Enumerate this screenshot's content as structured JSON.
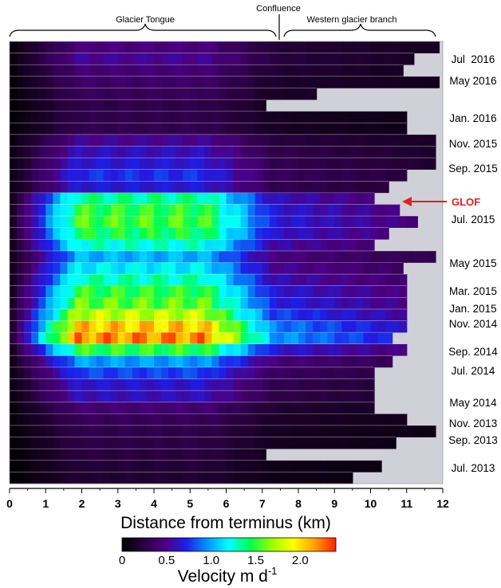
{
  "chart_data": {
    "type": "heatmap",
    "xlabel": "Distance from terminus (km)",
    "x_ticks": [
      "0",
      "1",
      "2",
      "3",
      "4",
      "5",
      "6",
      "7",
      "8",
      "9",
      "10",
      "11",
      "12"
    ],
    "xlim": [
      0,
      12
    ],
    "top_annotations": [
      "Glacier Tongue",
      "Confluence",
      "Western glacier branch"
    ],
    "row_labels": [
      "Jul  2016",
      "May 2016",
      "Jan. 2016",
      "Nov. 2015",
      "Sep. 2015",
      "Jul. 2015",
      "May 2015",
      "Mar. 2015",
      "Jan. 2015",
      "Nov. 2014",
      "Sep. 2014",
      "Jul. 2014",
      "May 2014",
      "Nov. 2013",
      "Sep. 2013",
      "Jul. 2013"
    ],
    "glof_label": "GLOF",
    "colorbar": {
      "title": "Velocity m d",
      "title_sup": "-1",
      "ticks": [
        "0",
        "0.5",
        "1.0",
        "1.5",
        "2.0"
      ],
      "range": [
        0,
        2.4
      ],
      "stops": [
        "#000000",
        "#2a0040",
        "#4b0082",
        "#1e1ee6",
        "#0096ff",
        "#00ffff",
        "#00ff50",
        "#9aff00",
        "#ffff00",
        "#ffa000",
        "#ff2000"
      ]
    },
    "no_data_color": "#d0d0d8",
    "rows": [
      {
        "peak": 0.48,
        "extent": 11.9
      },
      {
        "peak": 0.55,
        "extent": 11.2
      },
      {
        "peak": 0.45,
        "extent": 10.9
      },
      {
        "peak": 0.4,
        "extent": 11.9
      },
      {
        "peak": 0.35,
        "extent": 8.5
      },
      {
        "peak": 0.3,
        "extent": 7.1
      },
      {
        "peak": 0.3,
        "extent": 11.0
      },
      {
        "peak": 0.32,
        "extent": 11.0
      },
      {
        "peak": 0.55,
        "extent": 11.8
      },
      {
        "peak": 0.65,
        "extent": 11.8
      },
      {
        "peak": 0.72,
        "extent": 11.8
      },
      {
        "peak": 0.8,
        "extent": 11.0
      },
      {
        "peak": 0.72,
        "extent": 10.5
      },
      {
        "peak": 1.45,
        "extent": 10.1
      },
      {
        "peak": 1.6,
        "extent": 10.8
      },
      {
        "peak": 1.65,
        "extent": 11.3
      },
      {
        "peak": 1.55,
        "extent": 10.5
      },
      {
        "peak": 1.35,
        "extent": 10.1
      },
      {
        "peak": 1.1,
        "extent": 11.8
      },
      {
        "peak": 1.25,
        "extent": 10.9
      },
      {
        "peak": 1.4,
        "extent": 11.0
      },
      {
        "peak": 1.6,
        "extent": 11.0
      },
      {
        "peak": 1.7,
        "extent": 11.0
      },
      {
        "peak": 1.9,
        "extent": 11.0
      },
      {
        "peak": 2.2,
        "extent": 11.0
      },
      {
        "peak": 2.35,
        "extent": 10.6
      },
      {
        "peak": 1.6,
        "extent": 11.0
      },
      {
        "peak": 1.05,
        "extent": 10.6
      },
      {
        "peak": 0.85,
        "extent": 10.1
      },
      {
        "peak": 0.7,
        "extent": 10.1
      },
      {
        "peak": 0.65,
        "extent": 10.1
      },
      {
        "peak": 0.45,
        "extent": 10.1
      },
      {
        "peak": 0.35,
        "extent": 11.0
      },
      {
        "peak": 0.3,
        "extent": 11.8
      },
      {
        "peak": 0.28,
        "extent": 10.7
      },
      {
        "peak": 0.25,
        "extent": 7.1
      },
      {
        "peak": 0.22,
        "extent": 10.3
      },
      {
        "peak": 0.2,
        "extent": 9.5
      }
    ]
  }
}
